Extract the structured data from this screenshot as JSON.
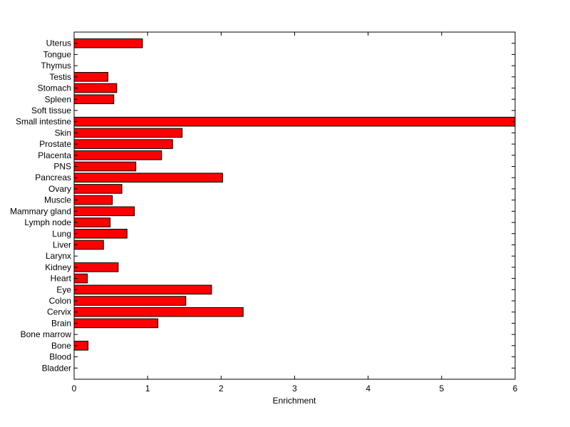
{
  "chart_data": {
    "type": "bar",
    "orientation": "horizontal",
    "categories": [
      "Uterus",
      "Tongue",
      "Thymus",
      "Testis",
      "Stomach",
      "Spleen",
      "Soft tissue",
      "Small intestine",
      "Skin",
      "Prostate",
      "Placenta",
      "PNS",
      "Pancreas",
      "Ovary",
      "Muscle",
      "Mammary gland",
      "Lymph node",
      "Lung",
      "Liver",
      "Larynx",
      "Kidney",
      "Heart",
      "Eye",
      "Colon",
      "Cervix",
      "Brain",
      "Bone marrow",
      "Bone",
      "Blood",
      "Bladder"
    ],
    "values": [
      0.93,
      0,
      0,
      0.46,
      0.58,
      0.54,
      0,
      6.0,
      1.47,
      1.34,
      1.19,
      0.84,
      2.02,
      0.65,
      0.52,
      0.82,
      0.49,
      0.72,
      0.4,
      0,
      0.6,
      0.18,
      1.87,
      1.52,
      2.3,
      1.14,
      0,
      0.19,
      0,
      0
    ],
    "title": "",
    "xlabel": "Enrichment",
    "ylabel": "",
    "xlim": [
      0,
      6
    ],
    "xticks": [
      0,
      1,
      2,
      3,
      4,
      5,
      6
    ],
    "bar_color": "#ff0000",
    "grid": false
  }
}
